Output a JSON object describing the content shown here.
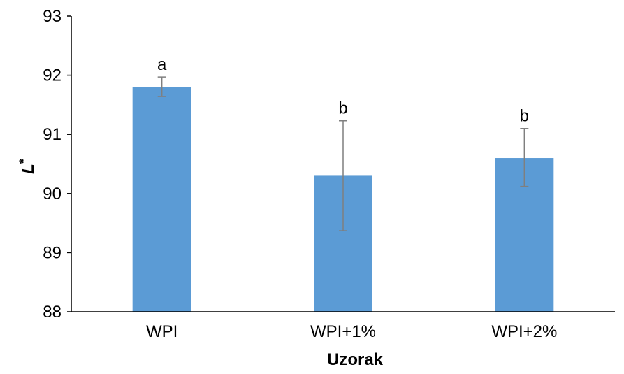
{
  "chart_data": {
    "type": "bar",
    "categories": [
      "WPI",
      "WPI+1%",
      "WPI+2%"
    ],
    "values": [
      91.8,
      90.3,
      90.6
    ],
    "error_high": [
      91.97,
      91.23,
      91.1
    ],
    "error_low": [
      91.64,
      89.37,
      90.12
    ],
    "significance_labels": [
      "a",
      "b",
      "b"
    ],
    "xlabel": "Uzorak",
    "ylabel": {
      "main": "L",
      "superscript": "*"
    },
    "ylim": [
      88,
      93
    ],
    "yticks": [
      88,
      89,
      90,
      91,
      92,
      93
    ],
    "bar_color": "#5b9bd5",
    "error_color": "#7f7f7f",
    "grid": false
  }
}
